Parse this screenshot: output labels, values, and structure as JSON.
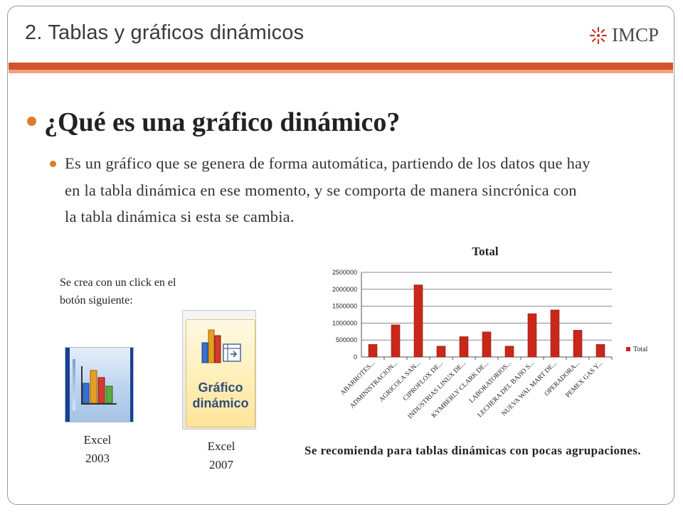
{
  "slide": {
    "title": "2. Tablas y gráficos dinámicos",
    "logo_text": "IMCP",
    "heading": "¿Qué es una gráfico dinámico?",
    "paragraph": "Es un  gráfico que se genera de forma automática, partiendo de los datos que hay en la tabla dinámica en ese momento, y se comporta de manera sincrónica con la tabla dinámica si esta se cambia.",
    "note": "Se crea con un click en el botón siguiente:",
    "button_label_2007": "Gráfico dinámico",
    "excel2003": {
      "line1": "Excel",
      "line2": "2003"
    },
    "excel2007": {
      "line1": "Excel",
      "line2": "2007"
    },
    "recommendation": "Se recomienda para tablas dinámicas con pocas agrupaciones."
  },
  "colors": {
    "accent_bar": "#d35230",
    "accent_light": "#f0a27f",
    "bullet": "#e07b2a",
    "series": "#c9271a"
  },
  "chart_data": {
    "type": "bar",
    "title": "Total",
    "categories": [
      "ABARROTES...",
      "ADMINISTRACION...",
      "AGRICOLA SAN...",
      "CIPROFLOX DE...",
      "INDUSTRIAS LINUX DE...",
      "KYMBERLY CLARK DE...",
      "LABORATORIOS...",
      "LECHERA DEL BAJIO S...",
      "NUEVA WAL MART DE...",
      "OPERADORA...",
      "PEMEX GAS Y..."
    ],
    "series": [
      {
        "name": "Total",
        "values": [
          370000,
          950000,
          2130000,
          320000,
          600000,
          740000,
          320000,
          1280000,
          1390000,
          790000,
          370000
        ]
      }
    ],
    "yticks": [
      0,
      500000,
      1000000,
      1500000,
      2000000,
      2500000
    ],
    "ylim": [
      0,
      2500000
    ],
    "grid": true,
    "legend": "right"
  }
}
